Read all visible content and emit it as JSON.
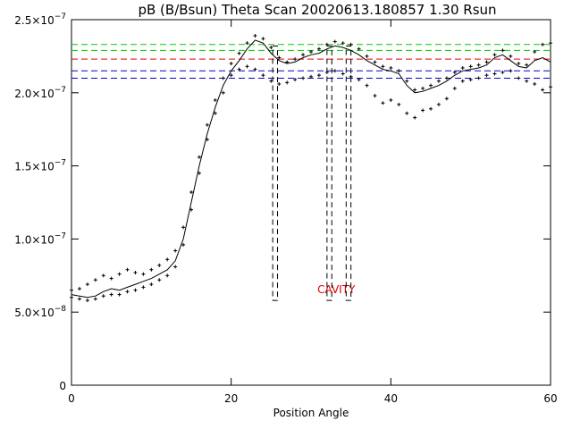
{
  "chart_data": {
    "type": "line",
    "title": "pB (B/Bsun) Theta Scan 20020613.180857 1.30 Rsun",
    "xlabel": "Position Angle",
    "ylabel": "",
    "xlim": [
      0,
      60
    ],
    "ylim": [
      0,
      2.5e-07
    ],
    "grid": false,
    "x_ticks": [
      0,
      20,
      40,
      60
    ],
    "x_tick_labels": [
      "0",
      "20",
      "40",
      "60"
    ],
    "y_ticks": [
      0,
      5e-08,
      1e-07,
      1.5e-07,
      2e-07,
      2.5e-07
    ],
    "y_tick_labels": [
      {
        "mant": "0",
        "exp": ""
      },
      {
        "mant": "5.0×10",
        "exp": "−8"
      },
      {
        "mant": "1.0×10",
        "exp": "−7"
      },
      {
        "mant": "1.5×10",
        "exp": "−7"
      },
      {
        "mant": "2.0×10",
        "exp": "−7"
      },
      {
        "mant": "2.5×10",
        "exp": "−7"
      }
    ],
    "reference_lines": [
      {
        "y": 2.33e-07,
        "color": "#00cc00"
      },
      {
        "y": 2.29e-07,
        "color": "#00cc00"
      },
      {
        "y": 2.23e-07,
        "color": "#dd0000"
      },
      {
        "y": 2.15e-07,
        "color": "#0000cc"
      },
      {
        "y": 2.1e-07,
        "color": "#0000cc"
      }
    ],
    "annotations": [
      {
        "text": "CAVITY",
        "x": 30.8,
        "y": 6.3e-08,
        "color": "#dd0000"
      }
    ],
    "boxes": [
      {
        "x0": 25.2,
        "x1": 25.8,
        "y0": 5.8e-08,
        "y1": 2.32e-07
      },
      {
        "x0": 32.0,
        "x1": 32.6,
        "y0": 5.8e-08,
        "y1": 2.32e-07
      },
      {
        "x0": 34.4,
        "x1": 35.0,
        "y0": 5.8e-08,
        "y1": 2.32e-07
      }
    ],
    "series": [
      {
        "style": "line",
        "color": "#000000",
        "x": [
          0,
          1,
          2,
          3,
          4,
          5,
          6,
          7,
          8,
          9,
          10,
          11,
          12,
          13,
          14,
          15,
          16,
          17,
          18,
          19,
          20,
          21,
          22,
          23,
          24,
          25,
          26,
          27,
          28,
          29,
          30,
          31,
          32,
          33,
          34,
          35,
          36,
          37,
          38,
          39,
          40,
          41,
          42,
          43,
          44,
          45,
          46,
          47,
          48,
          49,
          50,
          51,
          52,
          53,
          54,
          55,
          56,
          57,
          58,
          59,
          60
        ],
        "y": [
          6.2e-08,
          6.1e-08,
          6e-08,
          6.1e-08,
          6.4e-08,
          6.6e-08,
          6.5e-08,
          6.7e-08,
          6.9e-08,
          7.1e-08,
          7.3e-08,
          7.6e-08,
          7.9e-08,
          8.5e-08,
          1e-07,
          1.25e-07,
          1.5e-07,
          1.72e-07,
          1.9e-07,
          2.05e-07,
          2.15e-07,
          2.22e-07,
          2.3e-07,
          2.36e-07,
          2.34e-07,
          2.27e-07,
          2.22e-07,
          2.2e-07,
          2.21e-07,
          2.24e-07,
          2.26e-07,
          2.27e-07,
          2.3e-07,
          2.32e-07,
          2.31e-07,
          2.29e-07,
          2.26e-07,
          2.22e-07,
          2.19e-07,
          2.16e-07,
          2.15e-07,
          2.13e-07,
          2.05e-07,
          2e-07,
          2.01e-07,
          2.03e-07,
          2.05e-07,
          2.08e-07,
          2.12e-07,
          2.15e-07,
          2.16e-07,
          2.17e-07,
          2.19e-07,
          2.24e-07,
          2.26e-07,
          2.22e-07,
          2.18e-07,
          2.17e-07,
          2.22e-07,
          2.24e-07,
          2.21e-07
        ]
      },
      {
        "style": "points",
        "color": "#000000",
        "x": [
          0,
          1,
          2,
          3,
          4,
          5,
          6,
          7,
          8,
          9,
          10,
          11,
          12,
          13,
          14,
          15,
          16,
          17,
          18,
          19,
          20,
          21,
          22,
          23,
          24,
          25,
          26,
          27,
          28,
          29,
          30,
          31,
          32,
          33,
          34,
          35,
          36,
          37,
          38,
          39,
          40,
          41,
          42,
          43,
          44,
          45,
          46,
          47,
          48,
          49,
          50,
          51,
          52,
          53,
          54,
          55,
          56,
          57,
          58,
          59,
          60
        ],
        "y": [
          6.5e-08,
          6.6e-08,
          6.9e-08,
          7.2e-08,
          7.5e-08,
          7.3e-08,
          7.6e-08,
          7.9e-08,
          7.7e-08,
          7.6e-08,
          7.9e-08,
          8.2e-08,
          8.6e-08,
          9.2e-08,
          1.08e-07,
          1.32e-07,
          1.56e-07,
          1.78e-07,
          1.95e-07,
          2.1e-07,
          2.2e-07,
          2.27e-07,
          2.34e-07,
          2.39e-07,
          2.37e-07,
          2.31e-07,
          2.24e-07,
          2.21e-07,
          2.23e-07,
          2.26e-07,
          2.28e-07,
          2.3e-07,
          2.33e-07,
          2.35e-07,
          2.34e-07,
          2.33e-07,
          2.3e-07,
          2.25e-07,
          2.21e-07,
          2.18e-07,
          2.17e-07,
          2.15e-07,
          2.08e-07,
          2.02e-07,
          2.03e-07,
          2.05e-07,
          2.08e-07,
          2.1e-07,
          2.14e-07,
          2.17e-07,
          2.18e-07,
          2.19e-07,
          2.21e-07,
          2.26e-07,
          2.29e-07,
          2.25e-07,
          2.2e-07,
          2.19e-07,
          2.28e-07,
          2.33e-07,
          2.34e-07
        ]
      },
      {
        "style": "points",
        "color": "#000000",
        "x": [
          0,
          1,
          2,
          3,
          4,
          5,
          6,
          7,
          8,
          9,
          10,
          11,
          12,
          13,
          14,
          15,
          16,
          17,
          18,
          19,
          20,
          21,
          22,
          23,
          24,
          25,
          26,
          27,
          28,
          29,
          30,
          31,
          32,
          33,
          34,
          35,
          36,
          37,
          38,
          39,
          40,
          41,
          42,
          43,
          44,
          45,
          46,
          47,
          48,
          49,
          50,
          51,
          52,
          53,
          54,
          55,
          56,
          57,
          58,
          59,
          60
        ],
        "y": [
          6e-08,
          5.9e-08,
          5.8e-08,
          5.9e-08,
          6.1e-08,
          6.2e-08,
          6.2e-08,
          6.4e-08,
          6.5e-08,
          6.7e-08,
          6.9e-08,
          7.2e-08,
          7.5e-08,
          8.1e-08,
          9.6e-08,
          1.2e-07,
          1.45e-07,
          1.68e-07,
          1.86e-07,
          2e-07,
          2.12e-07,
          2.16e-07,
          2.18e-07,
          2.16e-07,
          2.12e-07,
          2.08e-07,
          2.06e-07,
          2.07e-07,
          2.09e-07,
          2.1e-07,
          2.11e-07,
          2.12e-07,
          2.14e-07,
          2.15e-07,
          2.13e-07,
          2.11e-07,
          2.09e-07,
          2.05e-07,
          1.98e-07,
          1.93e-07,
          1.95e-07,
          1.92e-07,
          1.86e-07,
          1.83e-07,
          1.88e-07,
          1.89e-07,
          1.92e-07,
          1.96e-07,
          2.03e-07,
          2.08e-07,
          2.09e-07,
          2.1e-07,
          2.12e-07,
          2.13e-07,
          2.14e-07,
          2.15e-07,
          2.1e-07,
          2.08e-07,
          2.06e-07,
          2.02e-07,
          2.04e-07
        ]
      }
    ]
  }
}
